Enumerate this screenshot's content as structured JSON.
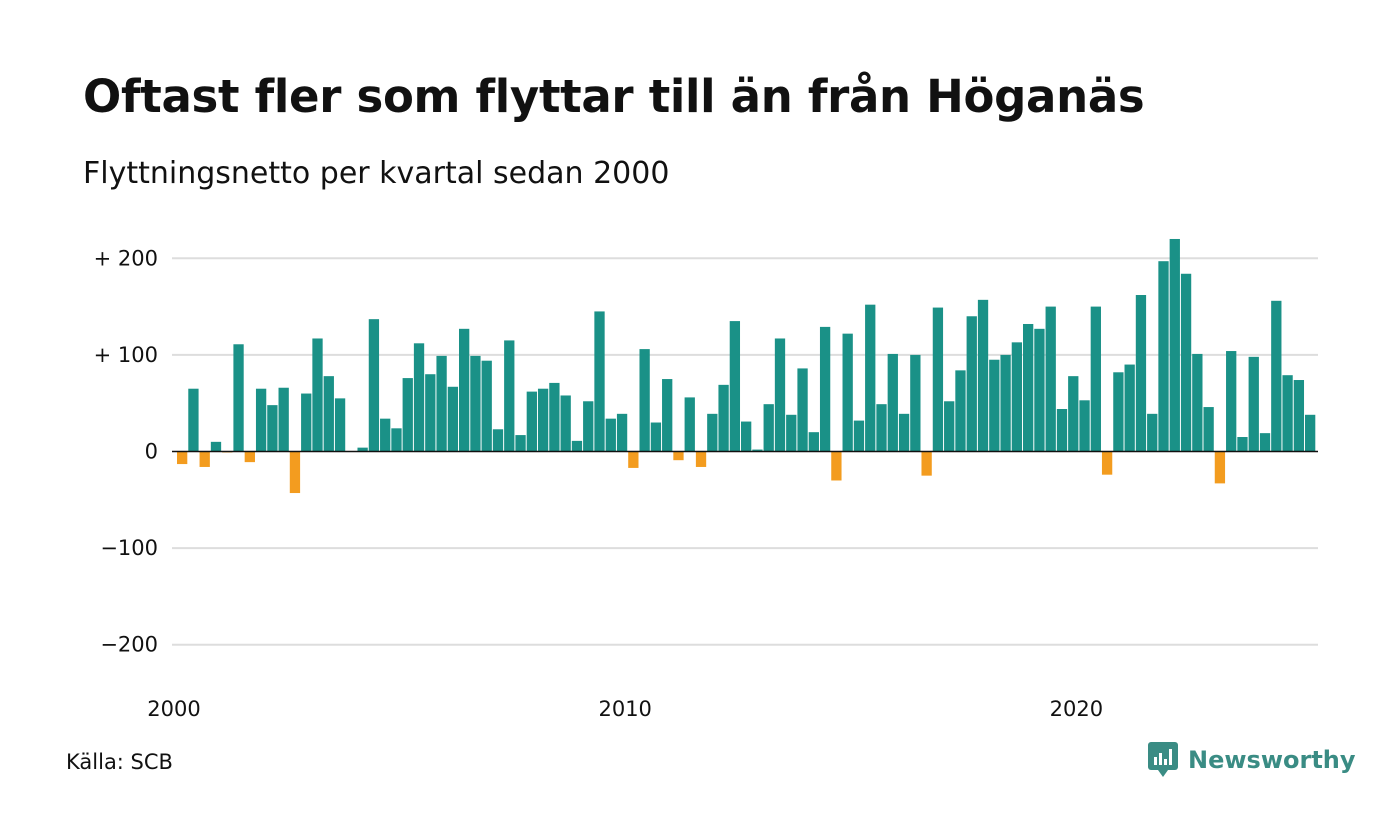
{
  "title": "Oftast fler som flyttar till än från Höganäs",
  "subtitle": "Flyttningsnetto per kvartal sedan 2000",
  "source": "Källa: SCB",
  "brand": {
    "name": "Newsworthy",
    "icon": "newsworthy-logo-icon"
  },
  "colors": {
    "positive": "#1a9187",
    "negative": "#f39c1f",
    "grid": "#dddddd",
    "brand": "#3a8c84"
  },
  "chart_data": {
    "type": "bar",
    "start_year": 2000,
    "x_ticks": [
      {
        "value": 2000,
        "label": "2000"
      },
      {
        "value": 2010,
        "label": "2010"
      },
      {
        "value": 2020,
        "label": "2020"
      }
    ],
    "y_ticks": [
      {
        "value": 200,
        "label": "+ 200"
      },
      {
        "value": 100,
        "label": "+ 100"
      },
      {
        "value": 0,
        "label": "0"
      },
      {
        "value": -100,
        "label": "−100"
      },
      {
        "value": -200,
        "label": "−200"
      }
    ],
    "ylim": [
      -215,
      225
    ],
    "grid": true,
    "values": [
      -13,
      65,
      -16,
      10,
      -1,
      111,
      -11,
      65,
      48,
      66,
      -43,
      60,
      117,
      78,
      55,
      0,
      4,
      137,
      34,
      24,
      76,
      112,
      80,
      99,
      67,
      127,
      99,
      94,
      23,
      115,
      17,
      62,
      65,
      71,
      58,
      11,
      52,
      145,
      34,
      39,
      -17,
      106,
      30,
      75,
      -9,
      56,
      -16,
      39,
      69,
      135,
      31,
      2,
      49,
      117,
      38,
      86,
      20,
      129,
      -30,
      122,
      32,
      152,
      49,
      101,
      39,
      100,
      -25,
      149,
      52,
      84,
      140,
      157,
      95,
      100,
      113,
      132,
      127,
      150,
      44,
      78,
      53,
      150,
      -24,
      82,
      90,
      162,
      39,
      197,
      220,
      184,
      101,
      46,
      -33,
      104,
      15,
      98,
      19,
      156,
      79,
      74,
      38
    ]
  }
}
